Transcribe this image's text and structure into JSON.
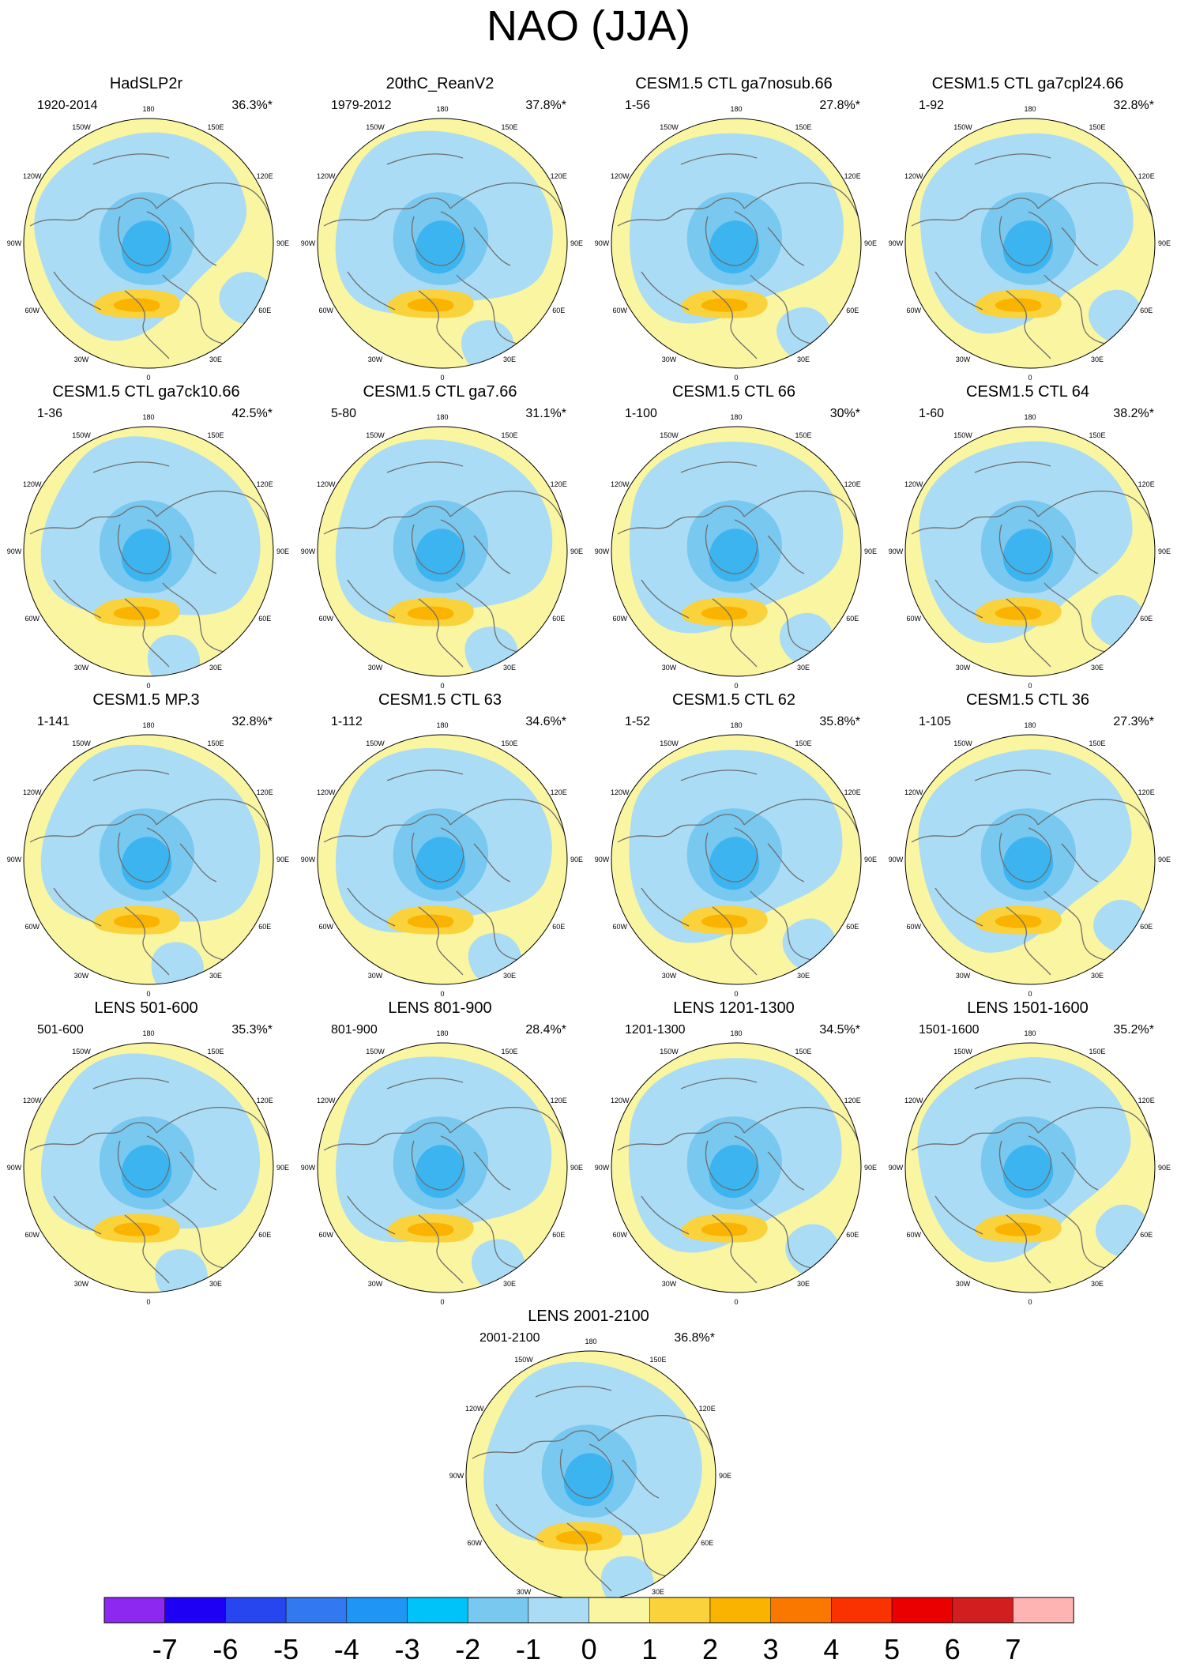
{
  "title": "NAO (JJA)",
  "panels": [
    {
      "title": "HadSLP2r",
      "period": "1920-2014",
      "pct": "36.3%*"
    },
    {
      "title": "20thC_ReanV2",
      "period": "1979-2012",
      "pct": "37.8%*"
    },
    {
      "title": "CESM1.5 CTL ga7nosub.66",
      "period": "1-56",
      "pct": "27.8%*"
    },
    {
      "title": "CESM1.5 CTL ga7cpl24.66",
      "period": "1-92",
      "pct": "32.8%*"
    },
    {
      "title": "CESM1.5 CTL ga7ck10.66",
      "period": "1-36",
      "pct": "42.5%*"
    },
    {
      "title": "CESM1.5 CTL ga7.66",
      "period": "5-80",
      "pct": "31.1%*"
    },
    {
      "title": "CESM1.5 CTL 66",
      "period": "1-100",
      "pct": "30%*"
    },
    {
      "title": "CESM1.5 CTL 64",
      "period": "1-60",
      "pct": "38.2%*"
    },
    {
      "title": "CESM1.5 MP.3",
      "period": "1-141",
      "pct": "32.8%*"
    },
    {
      "title": "CESM1.5 CTL 63",
      "period": "1-112",
      "pct": "34.6%*"
    },
    {
      "title": "CESM1.5 CTL 62",
      "period": "1-52",
      "pct": "35.8%*"
    },
    {
      "title": "CESM1.5 CTL 36",
      "period": "1-105",
      "pct": "27.3%*"
    },
    {
      "title": "LENS 501-600",
      "period": "501-600",
      "pct": "35.3%*"
    },
    {
      "title": "LENS 801-900",
      "period": "801-900",
      "pct": "28.4%*"
    },
    {
      "title": "LENS 1201-1300",
      "period": "1201-1300",
      "pct": "34.5%*"
    },
    {
      "title": "LENS 1501-1600",
      "period": "1501-1600",
      "pct": "35.2%*"
    },
    {
      "title": "LENS 2001-2100",
      "period": "2001-2100",
      "pct": "36.8%*"
    }
  ],
  "lon_labels": [
    "180",
    "150E",
    "120E",
    "90E",
    "60E",
    "30E",
    "0",
    "30W",
    "60W",
    "90W",
    "120W",
    "150W"
  ],
  "colors": {
    "background_positive": "#faf5a0",
    "negative_1": "#aadcf5",
    "negative_2": "#78c8f0",
    "negative_3": "#3cb4f0",
    "positive_2": "#fad23c",
    "positive_3": "#fab400",
    "coastline": "#6e6e6e"
  },
  "chart_data": {
    "type": "heatmap",
    "projection": "polar stereographic (North Pole)",
    "colorbar": {
      "labels": [
        "-7",
        "-6",
        "-5",
        "-4",
        "-3",
        "-2",
        "-1",
        "0",
        "1",
        "2",
        "3",
        "4",
        "5",
        "6",
        "7"
      ],
      "bins": [
        {
          "lower": null,
          "upper": -7,
          "color": "#8c28f0"
        },
        {
          "lower": -7,
          "upper": -6,
          "color": "#1e00f5"
        },
        {
          "lower": -6,
          "upper": -5,
          "color": "#2846f0"
        },
        {
          "lower": -5,
          "upper": -4,
          "color": "#3278f0"
        },
        {
          "lower": -4,
          "upper": -3,
          "color": "#1e96f5"
        },
        {
          "lower": -3,
          "upper": -2,
          "color": "#00c3fa"
        },
        {
          "lower": -2,
          "upper": -1,
          "color": "#78c8f0"
        },
        {
          "lower": -1,
          "upper": 0,
          "color": "#aadcf5"
        },
        {
          "lower": 0,
          "upper": 1,
          "color": "#faf5a0"
        },
        {
          "lower": 1,
          "upper": 2,
          "color": "#fad23c"
        },
        {
          "lower": 2,
          "upper": 3,
          "color": "#fab400"
        },
        {
          "lower": 3,
          "upper": 4,
          "color": "#fa7800"
        },
        {
          "lower": 4,
          "upper": 5,
          "color": "#fa3200"
        },
        {
          "lower": 5,
          "upper": 6,
          "color": "#eb0000"
        },
        {
          "lower": 6,
          "upper": 7,
          "color": "#d21e1e"
        },
        {
          "lower": 7,
          "upper": null,
          "color": "#ffb4b4"
        }
      ]
    }
  }
}
